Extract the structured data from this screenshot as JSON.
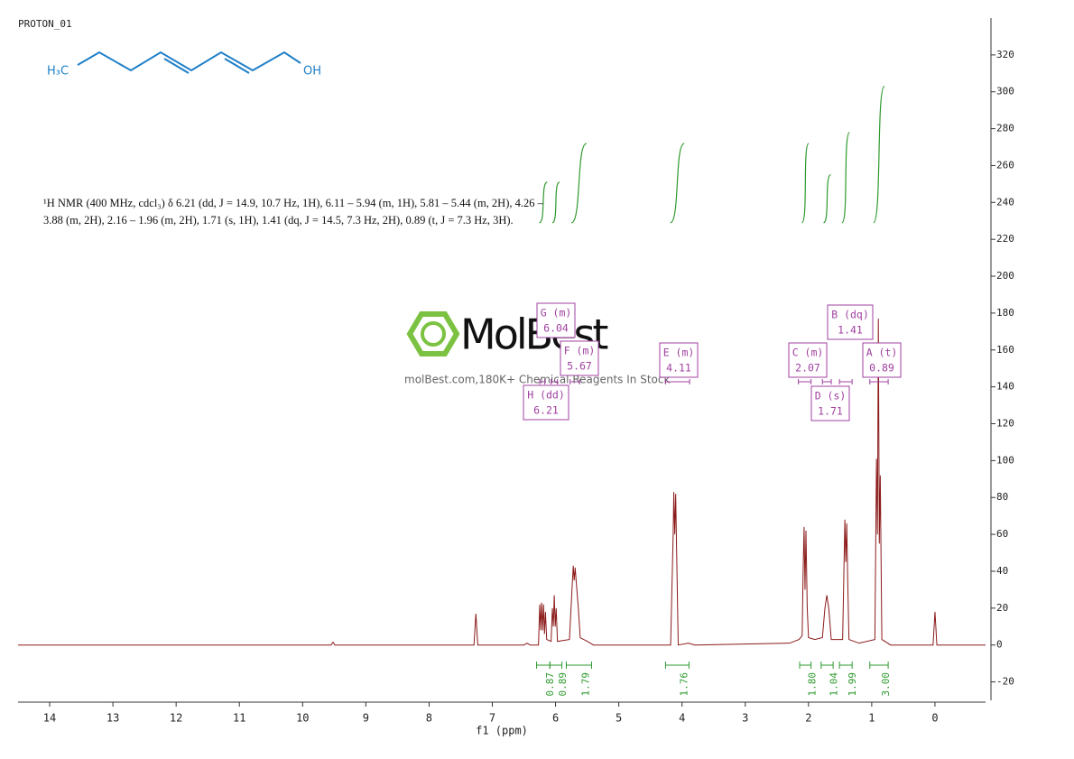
{
  "chart_data": {
    "type": "line",
    "title": "PROTON_01",
    "structure": {
      "left": "H₃C",
      "right": "OH"
    },
    "description": "¹H NMR (400 MHz, cdcl₃) δ 6.21 (dd, J = 14.9, 10.7 Hz, 1H), 6.11 – 5.94 (m, 1H), 5.81 – 5.44 (m, 2H), 4.26 – 3.88 (m, 2H), 2.16 – 1.96 (m, 2H), 1.71 (s, 1H), 1.41 (dq, J = 14.5, 7.3 Hz, 2H), 0.89 (t, J = 7.3 Hz, 3H).",
    "watermark": {
      "brand": "MolBest",
      "tagline": "molBest.com,180K+ Chemical Reagents In Stock"
    },
    "x_label": "f1 (ppm)",
    "xlim": [
      14.5,
      -0.8
    ],
    "xticks": [
      14,
      13,
      12,
      11,
      10,
      9,
      8,
      7,
      6,
      5,
      4,
      3,
      2,
      1,
      0
    ],
    "ylim": [
      -30,
      340
    ],
    "yticks": [
      -20,
      0,
      20,
      40,
      60,
      80,
      100,
      120,
      140,
      160,
      180,
      200,
      220,
      240,
      260,
      280,
      300,
      320
    ],
    "color": "#8b1a1a",
    "x": [
      14.5,
      9.55,
      9.52,
      9.49,
      7.29,
      7.26,
      7.23,
      6.5,
      6.45,
      6.4,
      6.27,
      6.25,
      6.235,
      6.22,
      6.205,
      6.19,
      6.175,
      6.16,
      6.14,
      6.07,
      6.05,
      6.035,
      6.02,
      6.005,
      5.99,
      5.97,
      5.78,
      5.74,
      5.72,
      5.705,
      5.69,
      5.67,
      5.64,
      5.61,
      5.5,
      5.4,
      4.18,
      4.14,
      4.13,
      4.115,
      4.1,
      4.085,
      4.06,
      3.9,
      3.8,
      2.3,
      2.15,
      2.1,
      2.085,
      2.07,
      2.055,
      2.04,
      2.02,
      2.0,
      1.9,
      1.78,
      1.74,
      1.71,
      1.68,
      1.64,
      1.46,
      1.44,
      1.425,
      1.41,
      1.395,
      1.38,
      1.36,
      1.2,
      0.95,
      0.925,
      0.91,
      0.895,
      0.88,
      0.865,
      0.84,
      0.7,
      0.03,
      0,
      -0.03,
      -0.8
    ],
    "values": [
      0,
      0,
      1.5,
      0,
      0,
      17,
      0,
      0,
      1,
      0,
      0,
      22,
      8,
      23,
      8,
      22,
      6,
      18,
      3,
      2,
      20,
      10,
      27,
      10,
      20,
      2,
      3,
      30,
      43,
      35,
      42,
      33,
      20,
      4,
      2,
      0,
      0,
      60,
      83,
      60,
      82,
      50,
      0,
      1,
      0,
      1,
      3,
      5,
      40,
      64,
      30,
      62,
      20,
      4,
      3,
      4,
      20,
      27,
      20,
      3,
      3,
      40,
      68,
      45,
      66,
      35,
      3,
      1,
      3,
      101,
      60,
      177,
      55,
      92,
      3,
      0,
      0,
      18,
      0,
      0
    ],
    "integral_color": "#2e9a2e",
    "integrals": [
      {
        "range": [
          6.3,
          6.09
        ],
        "curve": [
          229,
          251
        ],
        "value": 0.87
      },
      {
        "range": [
          6.09,
          5.9
        ],
        "curve": [
          229,
          251
        ],
        "value": 0.89
      },
      {
        "range": [
          5.83,
          5.43
        ],
        "curve": [
          229,
          272
        ],
        "value": 1.79
      },
      {
        "range": [
          4.26,
          3.89
        ],
        "curve": [
          229,
          272
        ],
        "value": 1.76
      },
      {
        "range": [
          2.14,
          1.96
        ],
        "curve": [
          229,
          272
        ],
        "value": 1.8,
        "label": "1.80"
      },
      {
        "range": [
          1.8,
          1.61
        ],
        "curve": [
          229,
          255
        ],
        "value": 1.04
      },
      {
        "range": [
          1.51,
          1.31
        ],
        "curve": [
          229,
          278
        ],
        "value": 1.99
      },
      {
        "range": [
          1.03,
          0.74
        ],
        "curve": [
          229,
          303
        ],
        "value": 3,
        "label": "3.00"
      }
    ],
    "peak_color": "#a040a0",
    "peaks": [
      {
        "label": "H (dd)",
        "shift": 6.21,
        "range": [
          6.25,
          6.17
        ]
      },
      {
        "label": "G (m)",
        "shift": 6.04,
        "range": [
          6.07,
          5.97
        ]
      },
      {
        "label": "F (m)",
        "shift": 5.67,
        "range": [
          5.77,
          5.62
        ]
      },
      {
        "label": "E (m)",
        "shift": 4.11,
        "range": [
          4.26,
          3.88
        ]
      },
      {
        "label": "C (m)",
        "shift": 2.07,
        "range": [
          2.16,
          1.96
        ]
      },
      {
        "label": "D (s)",
        "shift": 1.71,
        "range": [
          1.78,
          1.64
        ]
      },
      {
        "label": "B (dq)",
        "shift": 1.41,
        "range": [
          1.51,
          1.31
        ]
      },
      {
        "label": "A (t)",
        "shift": 0.89,
        "range": [
          1.03,
          0.74
        ]
      }
    ]
  }
}
